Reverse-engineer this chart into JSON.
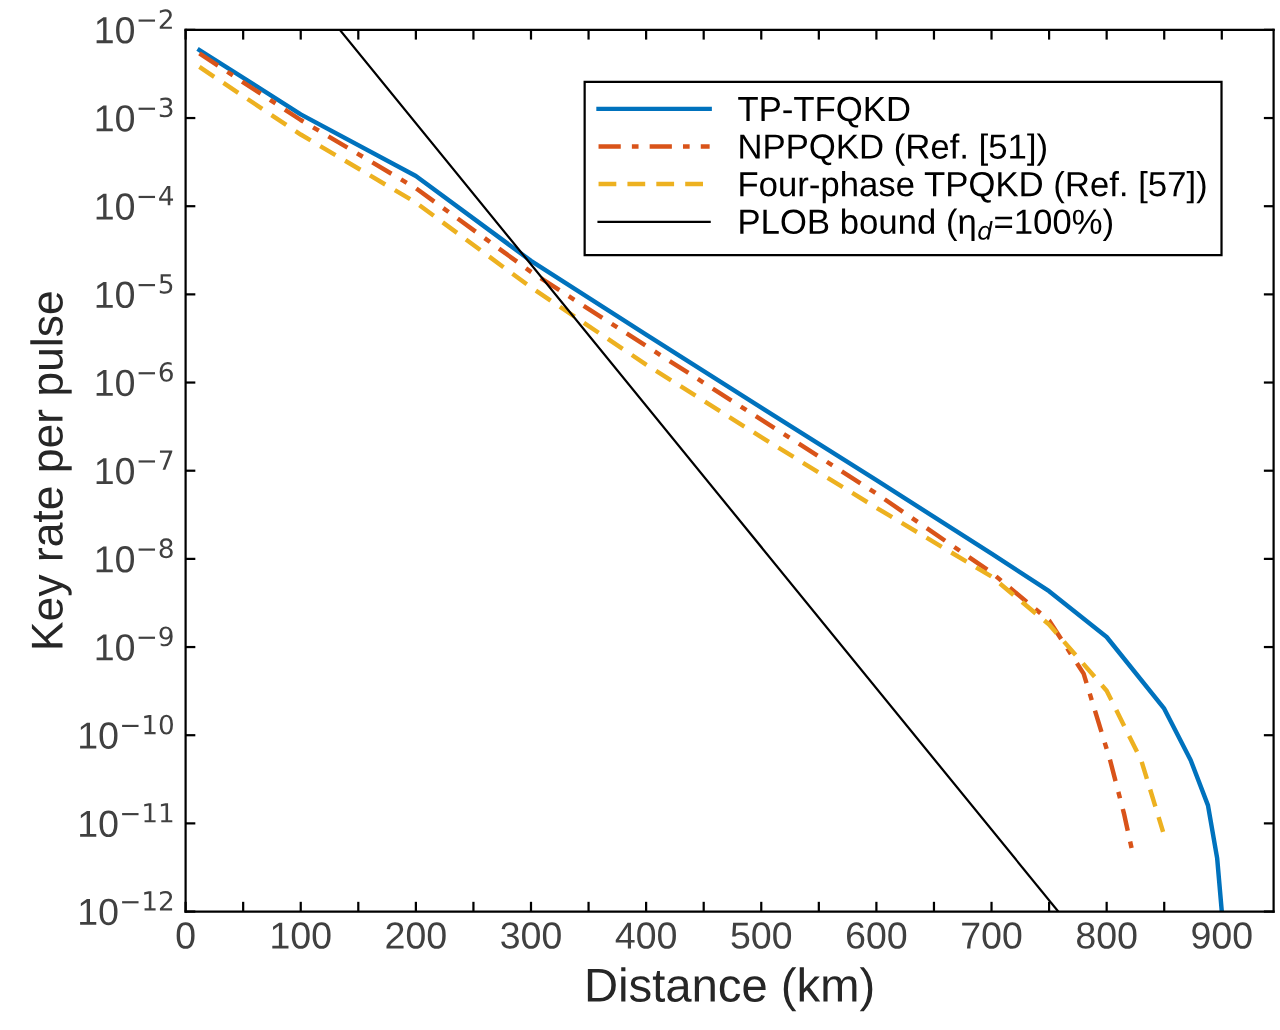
{
  "chart_data": {
    "type": "line",
    "xlabel": "Distance (km)",
    "ylabel": "Key rate per pulse",
    "log": "y",
    "xlim": [
      0,
      945
    ],
    "ylim": [
      1e-12,
      0.01
    ],
    "xticks": [
      0,
      {
        "value": 50,
        "label": null
      },
      100,
      {
        "value": 150,
        "label": null
      },
      200,
      {
        "value": 250,
        "label": null
      },
      300,
      {
        "value": 350,
        "label": null
      },
      400,
      {
        "value": 450,
        "label": null
      },
      500,
      {
        "value": 550,
        "label": null
      },
      600,
      {
        "value": 650,
        "label": null
      },
      700,
      {
        "value": 750,
        "label": null
      },
      800,
      {
        "value": 850,
        "label": null
      },
      900
    ],
    "yticks": [
      {
        "value": 1e-12,
        "label": "10$^{−12}$"
      },
      {
        "value": 1e-11,
        "label": "10$^{−11}$"
      },
      {
        "value": 1e-10,
        "label": "10$^{−10}$"
      },
      {
        "value": 1e-09,
        "label": "10$^{−9}$"
      },
      {
        "value": 1e-08,
        "label": "10$^{−8}$"
      },
      {
        "value": 1e-07,
        "label": "10$^{−7}$"
      },
      {
        "value": 1e-06,
        "label": "10$^{−6}$"
      },
      {
        "value": 1e-05,
        "label": "10$^{−5}$"
      },
      {
        "value": 0.0001,
        "label": "10$^{−4}$"
      },
      {
        "value": 0.001,
        "label": "10$^{−3}$"
      },
      {
        "value": 0.01,
        "label": "10$^{−2}$"
      }
    ],
    "grid": false,
    "legend": "top right",
    "marker": "none",
    "series": [
      {
        "name": "TP-TFQKD",
        "color": "#0072bd",
        "line_style": "solid",
        "x": [
          12,
          100,
          200,
          300,
          400,
          500,
          600,
          700,
          750,
          800,
          850,
          873,
          888,
          896,
          900
        ],
        "values": [
          0.0059,
          0.0011,
          0.00022,
          2.4e-05,
          3.5e-06,
          5.2e-07,
          7.8e-08,
          1.15e-08,
          4.3e-09,
          1.3e-09,
          2e-10,
          5.2e-11,
          1.6e-11,
          4e-12,
          1e-12
        ]
      },
      {
        "name": "NPPQKD (Ref. [51])",
        "color": "#d95319",
        "line_style": "dashdot",
        "x": [
          12,
          100,
          200,
          300,
          400,
          500,
          600,
          700,
          750,
          780,
          803,
          815,
          822
        ],
        "values": [
          0.0054,
          0.00095,
          0.00016,
          1.8e-05,
          2.6e-06,
          3.8e-07,
          5.5e-08,
          7e-09,
          2e-09,
          5e-10,
          5.2e-11,
          1.3e-11,
          5e-12
        ]
      },
      {
        "name": "Four-phase TPQKD (Ref. [57])",
        "color": "#edb120",
        "line_style": "dashed",
        "x": [
          12,
          100,
          200,
          300,
          400,
          500,
          600,
          700,
          750,
          800,
          830,
          842,
          849
        ],
        "values": [
          0.0038,
          0.00065,
          0.00011,
          1.2e-05,
          1.6e-06,
          2.4e-07,
          3.8e-08,
          6.3e-09,
          1.8e-09,
          3.2e-10,
          5.2e-11,
          1.6e-11,
          8e-12
        ]
      },
      {
        "name": "PLOB bound (η$_{d}$=100%)",
        "color": "#000000",
        "line_style": "solid",
        "x": [
          134,
          758
        ],
        "values": [
          0.01,
          1e-12
        ]
      }
    ]
  }
}
